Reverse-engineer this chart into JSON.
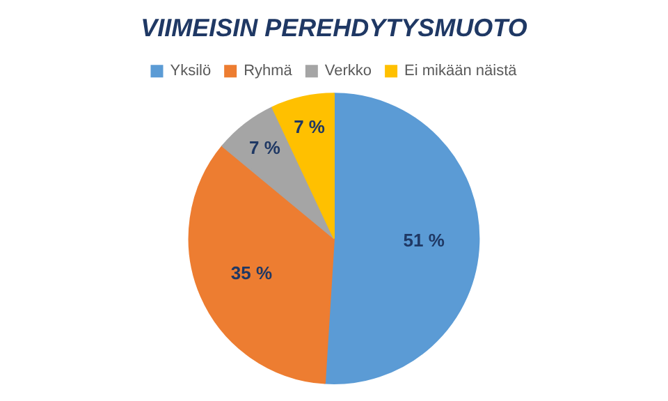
{
  "chart_data": {
    "type": "pie",
    "title": "VIIMEISIN PEREHDYTYSMUOTO",
    "categories": [
      "Yksilö",
      "Ryhmä",
      "Verkko",
      "Ei mikään näistä"
    ],
    "values": [
      51,
      35,
      7,
      7
    ],
    "colors": [
      "#5b9bd5",
      "#ed7d31",
      "#a5a5a5",
      "#ffc000"
    ],
    "value_labels": [
      "51 %",
      "35 %",
      "7 %",
      "7 %"
    ],
    "legend": "top"
  }
}
